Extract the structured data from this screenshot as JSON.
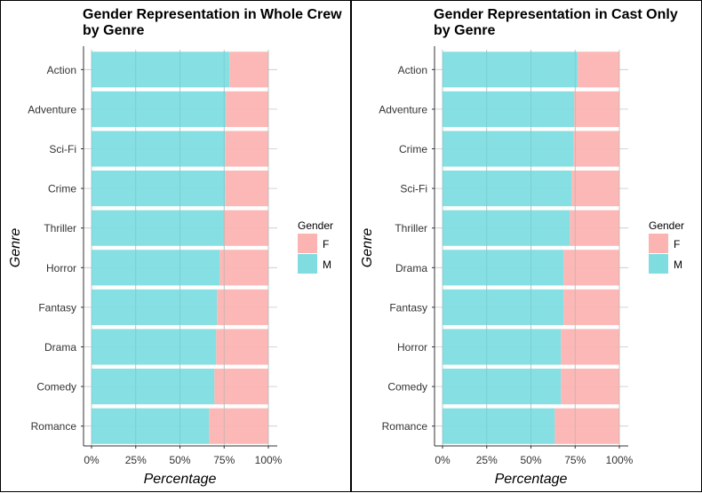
{
  "chart_data": [
    {
      "type": "bar",
      "orientation": "horizontal",
      "stacked": true,
      "title_lines": [
        "Gender Representation in Whole Crew",
        "by Genre"
      ],
      "xlabel": "Percentage",
      "ylabel": "Genre",
      "xlim": [
        0,
        100
      ],
      "xticks": [
        "0%",
        "25%",
        "50%",
        "75%",
        "100%"
      ],
      "categories": [
        "Action",
        "Adventure",
        "Sci-Fi",
        "Crime",
        "Thriller",
        "Horror",
        "Fantasy",
        "Drama",
        "Comedy",
        "Romance"
      ],
      "series": [
        {
          "name": "M",
          "values": [
            78,
            76,
            75.5,
            75.5,
            75,
            72.5,
            71,
            70.5,
            69.5,
            66.5
          ]
        },
        {
          "name": "F",
          "values": [
            22,
            24,
            24.5,
            24.5,
            25,
            27.5,
            29,
            29.5,
            30.5,
            33.5
          ]
        }
      ],
      "legend": {
        "title": "Gender",
        "entries": [
          "F",
          "M"
        ],
        "placement": "right"
      },
      "grid": true
    },
    {
      "type": "bar",
      "orientation": "horizontal",
      "stacked": true,
      "title_lines": [
        "Gender Representation in Cast Only",
        "by Genre"
      ],
      "xlabel": "Percentage",
      "ylabel": "Genre",
      "xlim": [
        0,
        100
      ],
      "xticks": [
        "0%",
        "25%",
        "50%",
        "75%",
        "100%"
      ],
      "categories": [
        "Action",
        "Adventure",
        "Crime",
        "Sci-Fi",
        "Thriller",
        "Drama",
        "Fantasy",
        "Horror",
        "Comedy",
        "Romance"
      ],
      "series": [
        {
          "name": "M",
          "values": [
            76.5,
            74.5,
            74,
            73,
            72,
            68.5,
            68.5,
            67,
            67,
            63.5
          ]
        },
        {
          "name": "F",
          "values": [
            23.5,
            25.5,
            26,
            27,
            28,
            31.5,
            31.5,
            33,
            33,
            36.5
          ]
        }
      ],
      "legend": {
        "title": "Gender",
        "entries": [
          "F",
          "M"
        ],
        "placement": "right"
      },
      "grid": true
    }
  ],
  "colors": {
    "M": "#7fdde0",
    "F": "#fbb4b2",
    "grid": "#c8c8c8",
    "axis": "#333333",
    "border": "#000000"
  }
}
